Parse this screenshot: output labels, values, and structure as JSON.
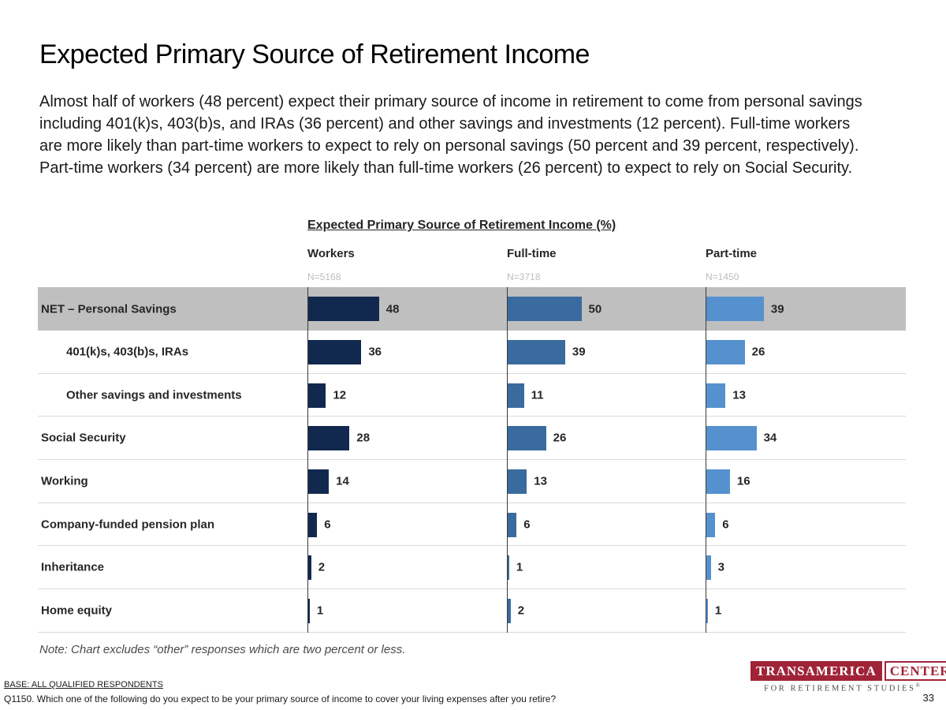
{
  "header": {
    "title": "Expected Primary Source of Retirement Income",
    "paragraph": "Almost half of workers (48 percent) expect their primary source of income in retirement to come from personal savings including 401(k)s, 403(b)s, and IRAs (36 percent) and other savings and investments (12 percent). Full-time workers are more likely than part-time workers to expect to rely on personal savings (50 percent and 39 percent, respectively). Part-time workers (34 percent) are more likely than full-time workers (26 percent) to expect to rely on Social Security."
  },
  "chart_data": {
    "type": "bar",
    "orientation": "horizontal",
    "title": "Expected Primary Source of Retirement Income (%)",
    "xlim": [
      0,
      100
    ],
    "grid": false,
    "legend_position": "column-headers",
    "categories": [
      {
        "label": "NET – Personal Savings",
        "indent": false,
        "highlight": true
      },
      {
        "label": "401(k)s, 403(b)s, IRAs",
        "indent": true,
        "highlight": false
      },
      {
        "label": "Other savings and investments",
        "indent": true,
        "highlight": false
      },
      {
        "label": "Social Security",
        "indent": false,
        "highlight": false
      },
      {
        "label": "Working",
        "indent": false,
        "highlight": false
      },
      {
        "label": "Company-funded pension plan",
        "indent": false,
        "highlight": false
      },
      {
        "label": "Inheritance",
        "indent": false,
        "highlight": false
      },
      {
        "label": "Home equity",
        "indent": false,
        "highlight": false
      }
    ],
    "series": [
      {
        "name": "Workers",
        "n_label": "N=5168",
        "color": "#12294f",
        "values": [
          48,
          36,
          12,
          28,
          14,
          6,
          2,
          1
        ]
      },
      {
        "name": "Full-time",
        "n_label": "N=3718",
        "color": "#3a6b9e",
        "values": [
          50,
          39,
          11,
          26,
          13,
          6,
          1,
          2
        ]
      },
      {
        "name": "Part-time",
        "n_label": "N=1450",
        "color": "#5591ce",
        "values": [
          39,
          26,
          13,
          34,
          16,
          6,
          3,
          1
        ]
      }
    ],
    "note": "Note: Chart excludes “other” responses which are two percent or less."
  },
  "colors": {
    "highlight_band": "#bfbfbf",
    "row_separator": "#d9d9d9",
    "axis_line": "#3a3a3a",
    "n_label_gray": "#bdbdbd",
    "logo_red": "#a02338"
  },
  "footer": {
    "base": "BASE: ALL QUALIFIED RESPONDENTS",
    "question": "Q1150. Which one of the following do you expect to be your primary source of income to cover your living expenses after you retire?",
    "page_number": "33"
  },
  "logo": {
    "brand": "TRANSAMERICA",
    "brand2": "CENTER",
    "tagline": "FOR RETIREMENT STUDIES",
    "registered": "®"
  }
}
